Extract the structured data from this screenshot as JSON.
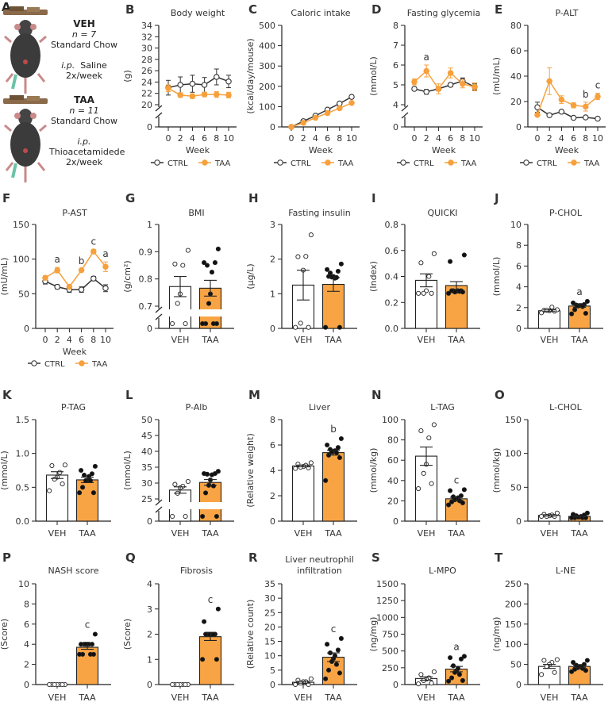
{
  "colors": {
    "ctrl": "#333333",
    "taa": "#F7A03C",
    "taa_bar": "#F9A444",
    "points": "#111111"
  },
  "panel_a": {
    "letter": "A",
    "veh": {
      "name": "VEH",
      "n": "n = 7",
      "diet": "Standard Chow",
      "route": "i.p.",
      "treatment": "Saline",
      "freq": "2x/week"
    },
    "taa": {
      "name": "TAA",
      "n": "n = 11",
      "diet": "Standard Chow",
      "route": "i.p.",
      "treatment": "Thioacetamidede",
      "freq": "2x/week"
    }
  },
  "chart_data": [
    {
      "id": "B",
      "type": "line",
      "title": "Body weight",
      "ylabel": "(g)",
      "xlabel": "Week",
      "x": [
        0,
        2,
        4,
        6,
        8,
        10
      ],
      "ylim": [
        20,
        34
      ],
      "yticks": [
        20,
        22,
        24,
        26,
        28,
        30,
        32,
        34
      ],
      "break": true,
      "legend": [
        "CTRL",
        "TAA"
      ],
      "series": [
        {
          "name": "CTRL",
          "mean": [
            23,
            23.5,
            23.7,
            23.5,
            24.9,
            24.1
          ],
          "err": [
            1.3,
            1.4,
            1.5,
            1.3,
            1.4,
            1.1
          ]
        },
        {
          "name": "TAA",
          "mean": [
            22.9,
            21.7,
            21.5,
            21.8,
            21.8,
            21.7
          ],
          "err": [
            0.6,
            0.4,
            0.4,
            0.4,
            0.5,
            0.5
          ]
        }
      ],
      "annotations": []
    },
    {
      "id": "C",
      "type": "line",
      "title": "Caloric intake",
      "ylabel": "(kcal/day/mouse)",
      "xlabel": "Week",
      "x": [
        0,
        2,
        4,
        6,
        8,
        10
      ],
      "ylim": [
        0,
        500
      ],
      "yticks": [
        0,
        100,
        200,
        300,
        400,
        500
      ],
      "break": false,
      "legend": [
        "CTRL",
        "TAA"
      ],
      "series": [
        {
          "name": "CTRL",
          "mean": [
            0,
            28,
            55,
            85,
            115,
            148
          ],
          "err": [
            0,
            2,
            2,
            3,
            3,
            8
          ]
        },
        {
          "name": "TAA",
          "mean": [
            0,
            20,
            45,
            68,
            92,
            118
          ],
          "err": [
            0,
            1,
            2,
            2,
            2,
            3
          ]
        }
      ],
      "annotations": []
    },
    {
      "id": "D",
      "type": "line",
      "title": "Fasting glycemia",
      "ylabel": "(mmol/L)",
      "xlabel": "Week",
      "x": [
        0,
        2,
        4,
        6,
        8,
        10
      ],
      "ylim": [
        4,
        8
      ],
      "yticks": [
        4,
        5,
        6,
        7,
        8
      ],
      "break": true,
      "legend": [
        "CTRL",
        "TAA"
      ],
      "series": [
        {
          "name": "CTRL",
          "mean": [
            4.8,
            4.65,
            4.8,
            5.0,
            5.2,
            4.9
          ],
          "err": [
            0.08,
            0.12,
            0.1,
            0.1,
            0.15,
            0.15
          ]
        },
        {
          "name": "TAA",
          "mean": [
            5.15,
            5.7,
            4.8,
            5.6,
            5.05,
            4.9
          ],
          "err": [
            0.15,
            0.3,
            0.25,
            0.25,
            0.2,
            0.2
          ]
        }
      ],
      "annotations": [
        {
          "x": 2,
          "label": "a"
        }
      ]
    },
    {
      "id": "E",
      "type": "line",
      "title": "P-ALT",
      "ylabel": "(mU/mL)",
      "xlabel": "Week",
      "x": [
        0,
        2,
        4,
        6,
        8,
        10
      ],
      "ylim": [
        0,
        80
      ],
      "yticks": [
        0,
        20,
        40,
        60,
        80
      ],
      "break": false,
      "legend": [
        "CTRL",
        "TAA"
      ],
      "series": [
        {
          "name": "CTRL",
          "mean": [
            15.5,
            9.2,
            12,
            7.2,
            7.5,
            6.5
          ],
          "err": [
            4,
            0.5,
            0.5,
            0.5,
            0.5,
            0.5
          ]
        },
        {
          "name": "TAA",
          "mean": [
            9.5,
            36,
            21.5,
            17,
            16,
            24
          ],
          "err": [
            1,
            10.5,
            3,
            2,
            3.5,
            2.5
          ]
        }
      ],
      "annotations": [
        {
          "x": 8,
          "label": "b"
        },
        {
          "x": 10,
          "label": "c"
        }
      ]
    },
    {
      "id": "F",
      "type": "line",
      "title": "P-AST",
      "ylabel": "(mU/mL)",
      "xlabel": "Week",
      "x": [
        0,
        2,
        4,
        6,
        8,
        10
      ],
      "ylim": [
        0,
        150
      ],
      "yticks": [
        0,
        50,
        100,
        150
      ],
      "break": false,
      "legend": [
        "CTRL",
        "TAA"
      ],
      "series": [
        {
          "name": "CTRL",
          "mean": [
            68,
            60,
            56,
            56,
            72,
            58
          ],
          "err": [
            4,
            3,
            4,
            4,
            3,
            5
          ]
        },
        {
          "name": "TAA",
          "mean": [
            73,
            84,
            60,
            84,
            111,
            89
          ],
          "err": [
            3,
            4,
            2,
            2,
            3,
            7
          ]
        }
      ],
      "annotations": [
        {
          "x": 2,
          "label": "a"
        },
        {
          "x": 6,
          "label": "b"
        },
        {
          "x": 8,
          "label": "c"
        },
        {
          "x": 10,
          "label": "a"
        }
      ]
    },
    {
      "id": "G",
      "type": "bar",
      "title": "BMI",
      "ylabel": "(g/cm²)",
      "categories": [
        "VEH",
        "TAA"
      ],
      "ylim": [
        0.7,
        1.0
      ],
      "yticks": [
        0.7,
        0.8,
        0.9,
        1.0
      ],
      "break": true,
      "mean": [
        0.772,
        0.766
      ],
      "sem": [
        0.037,
        0.029
      ],
      "points": [
        [
          0.905,
          0.855,
          0.85,
          0.745,
          0.71,
          0.6,
          0.6
        ],
        [
          0.91,
          0.86,
          0.86,
          0.85,
          0.825,
          0.745,
          0.71,
          0.6,
          0.6,
          0.6,
          0.6
        ]
      ],
      "annotations": []
    },
    {
      "id": "H",
      "type": "bar",
      "title": "Fasting insulin",
      "ylabel": "(μg/L)",
      "categories": [
        "VEH",
        "TAA"
      ],
      "ylim": [
        0,
        3
      ],
      "yticks": [
        0,
        1,
        2,
        3
      ],
      "break": false,
      "mean": [
        1.25,
        1.27
      ],
      "sem": [
        0.43,
        0.2
      ],
      "points": [
        [
          2.7,
          2.07,
          2.08,
          1.68,
          0.15,
          0.03,
          0.03
        ],
        [
          1.86,
          1.7,
          1.65,
          1.6,
          1.45,
          1.5,
          1.48,
          1.47,
          1.5,
          0.03,
          0.03
        ]
      ],
      "annotations": []
    },
    {
      "id": "I",
      "type": "bar",
      "title": "QUICKI",
      "ylabel": "(Index)",
      "categories": [
        "VEH",
        "TAA"
      ],
      "ylim": [
        0,
        0.8
      ],
      "yticks": [
        0.0,
        0.2,
        0.4,
        0.6,
        0.8
      ],
      "tickdec": 1,
      "break": false,
      "mean": [
        0.37,
        0.33
      ],
      "sem": [
        0.05,
        0.03
      ],
      "points": [
        [
          0.575,
          0.505,
          0.4,
          0.29,
          0.27,
          0.27,
          0.27
        ],
        [
          0.565,
          0.515,
          0.29,
          0.29,
          0.29,
          0.285,
          0.28,
          0.285,
          0.29,
          0.28,
          0.27
        ]
      ],
      "annotations": []
    },
    {
      "id": "J",
      "type": "bar",
      "title": "P-CHOL",
      "ylabel": "(mmol/L)",
      "categories": [
        "VEH",
        "TAA"
      ],
      "ylim": [
        0,
        10
      ],
      "yticks": [
        0,
        2,
        4,
        6,
        8,
        10
      ],
      "break": false,
      "mean": [
        1.7,
        2.15
      ],
      "sem": [
        0.08,
        0.12
      ],
      "points": [
        [
          1.8,
          1.75,
          2.05,
          1.7,
          1.75,
          1.65,
          1.5
        ],
        [
          2.6,
          2.45,
          2.3,
          2.25,
          2.2,
          2.2,
          2.15,
          2.1,
          1.8,
          1.45,
          1.4
        ]
      ],
      "annotations": [
        {
          "cat": 1,
          "label": "a"
        }
      ]
    },
    {
      "id": "K",
      "type": "bar",
      "title": "P-TAG",
      "ylabel": "(mmol/L)",
      "categories": [
        "VEH",
        "TAA"
      ],
      "ylim": [
        0,
        1.5
      ],
      "yticks": [
        0.0,
        0.5,
        1.0,
        1.5
      ],
      "tickdec": 1,
      "break": false,
      "mean": [
        0.68,
        0.61
      ],
      "sem": [
        0.05,
        0.04
      ],
      "points": [
        [
          0.83,
          0.82,
          0.72,
          0.65,
          0.62,
          0.55,
          0.45
        ],
        [
          0.81,
          0.75,
          0.7,
          0.68,
          0.66,
          0.6,
          0.6,
          0.6,
          0.5,
          0.42,
          0.42
        ]
      ],
      "annotations": []
    },
    {
      "id": "L",
      "type": "bar",
      "title": "P-Alb",
      "ylabel": "(mmol/L)",
      "categories": [
        "VEH",
        "TAA"
      ],
      "ylim": [
        25,
        50
      ],
      "yticks": [
        25,
        30,
        35,
        40,
        45,
        50
      ],
      "break": true,
      "mean": [
        27.8,
        30.2
      ],
      "sem": [
        1.0,
        0.9
      ],
      "points": [
        [
          30.5,
          29.6,
          29,
          28.5,
          26.8,
          24,
          24
        ],
        [
          33.7,
          33,
          33,
          32.8,
          32.6,
          31,
          29.3,
          29.1,
          26.9,
          24.5,
          24
        ]
      ],
      "annotations": []
    },
    {
      "id": "M",
      "type": "bar",
      "title": "Liver",
      "ylabel": "(Relative weight)",
      "categories": [
        "VEH",
        "TAA"
      ],
      "ylim": [
        0,
        8
      ],
      "yticks": [
        0,
        2,
        4,
        6,
        8
      ],
      "break": false,
      "mean": [
        4.35,
        5.4
      ],
      "sem": [
        0.07,
        0.2
      ],
      "points": [
        [
          4.6,
          4.5,
          4.4,
          4.3,
          4.25,
          4.2,
          4.15
        ],
        [
          6.5,
          6.0,
          5.8,
          5.65,
          5.55,
          5.5,
          5.45,
          5.4,
          5.2,
          5.0,
          3.2
        ]
      ],
      "annotations": [
        {
          "cat": 1,
          "label": "b"
        }
      ]
    },
    {
      "id": "N",
      "type": "bar",
      "title": "L-TAG",
      "ylabel": "(mmol/kg)",
      "categories": [
        "VEH",
        "TAA"
      ],
      "ylim": [
        0,
        100
      ],
      "yticks": [
        0,
        20,
        40,
        60,
        80,
        100
      ],
      "break": false,
      "mean": [
        64,
        22
      ],
      "sem": [
        9,
        1.5
      ],
      "points": [
        [
          95,
          89,
          82,
          56,
          47,
          37,
          32
        ],
        [
          31,
          30,
          25,
          24,
          23,
          22,
          21,
          20,
          19,
          18,
          16
        ]
      ],
      "annotations": [
        {
          "cat": 1,
          "label": "c"
        }
      ]
    },
    {
      "id": "O",
      "type": "bar",
      "title": "L-CHOL",
      "ylabel": "(mmol/kg)",
      "categories": [
        "VEH",
        "TAA"
      ],
      "ylim": [
        0,
        150
      ],
      "yticks": [
        0,
        50,
        100,
        150
      ],
      "break": false,
      "mean": [
        8.5,
        7
      ],
      "sem": [
        1,
        0.8
      ],
      "points": [
        [
          12,
          10,
          9,
          8,
          7,
          7,
          7
        ],
        [
          12,
          10,
          9,
          8,
          7,
          6,
          6,
          5,
          5,
          5,
          5
        ]
      ],
      "annotations": []
    },
    {
      "id": "P",
      "type": "bar",
      "title": "NASH score",
      "ylabel": "(Score)",
      "categories": [
        "VEH",
        "TAA"
      ],
      "ylim": [
        0,
        10
      ],
      "yticks": [
        0,
        2,
        4,
        6,
        8,
        10
      ],
      "break": false,
      "mean": [
        0,
        3.7
      ],
      "sem": [
        0,
        0.2
      ],
      "points": [
        [
          0,
          0,
          0,
          0,
          0,
          0,
          0
        ],
        [
          5,
          4,
          4,
          4,
          4,
          4,
          4,
          3,
          3,
          3,
          3
        ]
      ],
      "annotations": [
        {
          "cat": 1,
          "label": "c"
        }
      ]
    },
    {
      "id": "Q",
      "type": "bar",
      "title": "Fibrosis",
      "ylabel": "(Score)",
      "categories": [
        "VEH",
        "TAA"
      ],
      "ylim": [
        0,
        4
      ],
      "yticks": [
        0,
        1,
        2,
        3,
        4
      ],
      "break": false,
      "mean": [
        0,
        1.9
      ],
      "sem": [
        0,
        0.15
      ],
      "points": [
        [
          0,
          0,
          0,
          0,
          0,
          0,
          0
        ],
        [
          3,
          2.5,
          2,
          2,
          2,
          2,
          2,
          2,
          2,
          1,
          1
        ]
      ],
      "annotations": [
        {
          "cat": 1,
          "label": "c"
        }
      ]
    },
    {
      "id": "R",
      "type": "bar",
      "title": [
        "Liver neutrophil",
        "infiltration"
      ],
      "ylabel": "(Relative count)",
      "categories": [
        "VEH",
        "TAA"
      ],
      "ylim": [
        0,
        35
      ],
      "yticks": [
        0,
        5,
        10,
        15,
        20,
        25,
        30,
        35
      ],
      "break": false,
      "mean": [
        0.8,
        9.5
      ],
      "sem": [
        0.3,
        1.5
      ],
      "points": [
        [
          2,
          1.5,
          1,
          1,
          0.5,
          0,
          0
        ],
        [
          16,
          14,
          12,
          11,
          10,
          9,
          8,
          7,
          5,
          4,
          2
        ]
      ],
      "annotations": [
        {
          "cat": 1,
          "label": "c"
        }
      ]
    },
    {
      "id": "S",
      "type": "bar",
      "title": "L-MPO",
      "ylabel": "(ng/mg)",
      "categories": [
        "VEH",
        "TAA"
      ],
      "ylim": [
        0,
        1500
      ],
      "yticks": [
        0,
        250,
        500,
        750,
        1000,
        1250,
        1500
      ],
      "break": false,
      "mean": [
        90,
        230
      ],
      "sem": [
        25,
        40
      ],
      "points": [
        [
          190,
          150,
          100,
          80,
          60,
          20,
          10
        ],
        [
          420,
          400,
          380,
          280,
          240,
          200,
          180,
          150,
          100,
          60,
          50
        ]
      ],
      "annotations": [
        {
          "cat": 1,
          "label": "a"
        }
      ]
    },
    {
      "id": "T",
      "type": "bar",
      "title": "L-NE",
      "ylabel": "(ng/mg)",
      "categories": [
        "VEH",
        "TAA"
      ],
      "ylim": [
        0,
        250
      ],
      "yticks": [
        0,
        50,
        100,
        150,
        200,
        250
      ],
      "break": false,
      "mean": [
        45,
        45
      ],
      "sem": [
        5,
        3
      ],
      "points": [
        [
          62,
          60,
          55,
          50,
          45,
          30,
          25
        ],
        [
          60,
          55,
          50,
          48,
          45,
          45,
          42,
          40,
          38,
          35,
          32
        ]
      ],
      "annotations": []
    }
  ]
}
